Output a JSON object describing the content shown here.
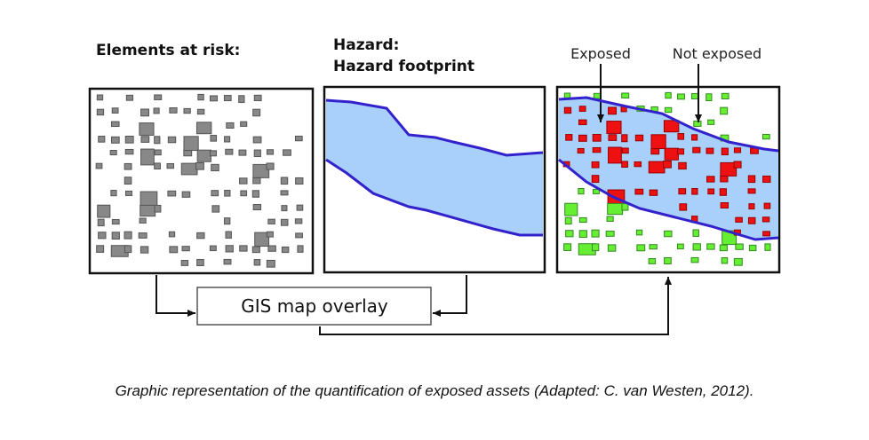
{
  "panels": {
    "elements_title": "Elements at risk:",
    "hazard_title": "Hazard:",
    "hazard_subtitle": "Hazard footprint",
    "exposed_label": "Exposed",
    "not_exposed_label": "Not exposed"
  },
  "overlay_label": "GIS map overlay",
  "caption": "Graphic representation of the quantification of exposed assets (Adapted: C. van Westen, 2012)."
}
